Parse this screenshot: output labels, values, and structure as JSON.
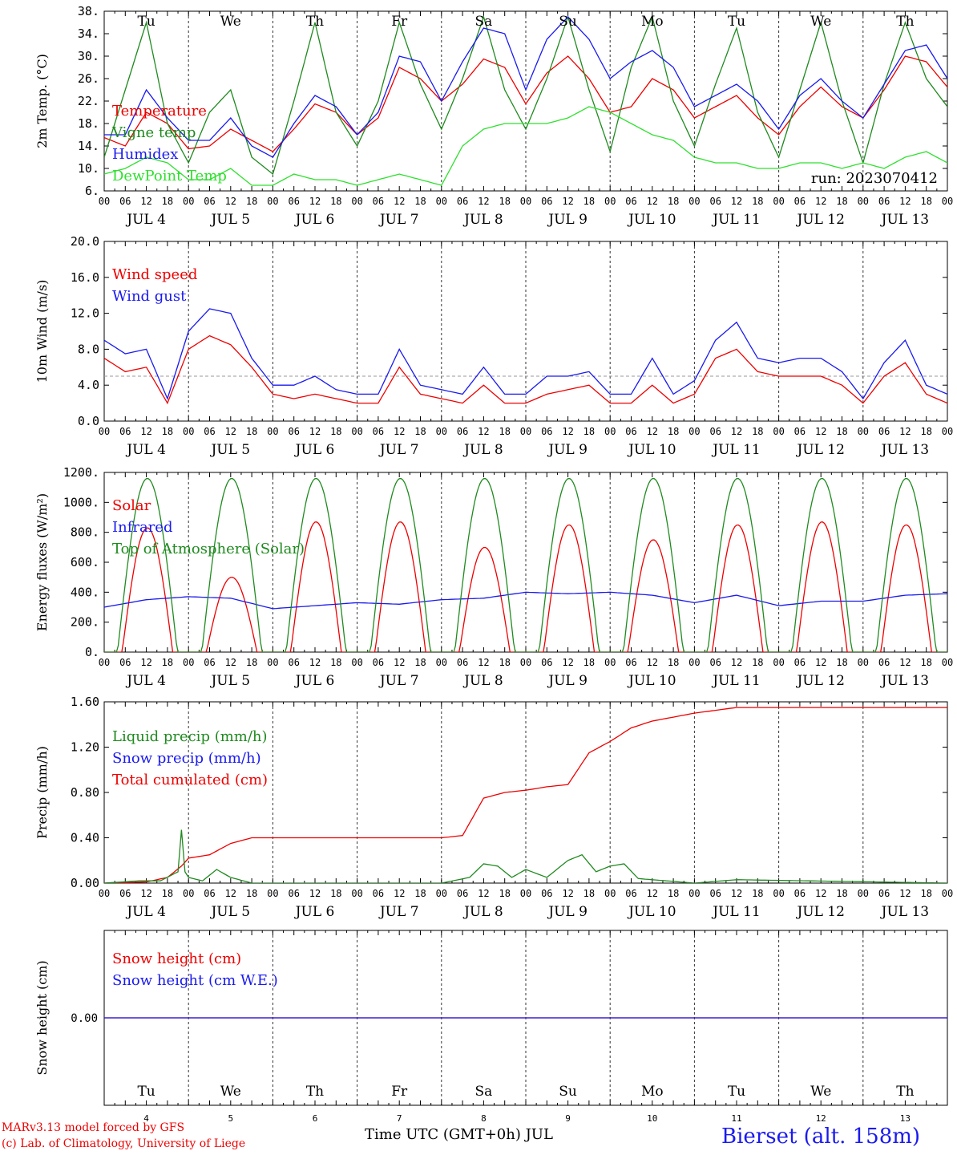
{
  "run_label": "run: 2023070412",
  "station": "Bierset (alt. 158m)",
  "footer": {
    "model": "MARv3.13 model forced by GFS",
    "copyright": "(c) Lab. of Climatology, University of Liege",
    "xaxis_title": "Time UTC (GMT+0h) JUL"
  },
  "colors": {
    "red": "#ee0000",
    "blue": "#1a1aee",
    "green": "#1f8a1f",
    "lightgreen": "#2ee02e",
    "purple": "#8b3a8b",
    "grid": "#666666"
  },
  "days": {
    "weekday": [
      "Tu",
      "We",
      "Th",
      "Fr",
      "Sa",
      "Su",
      "Mo",
      "Tu",
      "We",
      "Th"
    ],
    "weekend_flags": [
      false,
      false,
      false,
      false,
      true,
      true,
      false,
      false,
      false,
      false
    ],
    "dates": [
      "JUL  4",
      "JUL  5",
      "JUL  6",
      "JUL  7",
      "JUL  8",
      "JUL  9",
      "JUL 10",
      "JUL 11",
      "JUL 12",
      "JUL 13"
    ],
    "numbers": [
      "4",
      "5",
      "6",
      "7",
      "8",
      "9",
      "10",
      "11",
      "12",
      "13"
    ],
    "hour_ticks": [
      "00",
      "06",
      "12",
      "18"
    ],
    "final_hour": "00"
  },
  "chart_data": [
    {
      "id": "temp",
      "type": "line",
      "ylabel": "2m Temp. (°C)",
      "ylim": [
        6,
        38
      ],
      "yticks": [
        "6.",
        "10.",
        "14.",
        "18.",
        "22.",
        "26.",
        "30.",
        "34.",
        "38."
      ],
      "xunit": "hours since JUL 4 00 UTC",
      "legend": [
        "Temperature",
        "Vigne temp",
        "Humidex",
        "DewPoint Temp"
      ],
      "series": [
        {
          "name": "Temperature",
          "color": "red",
          "x": [
            0,
            6,
            12,
            18,
            24,
            30,
            36,
            42,
            48,
            54,
            60,
            66,
            72,
            78,
            84,
            90,
            96,
            102,
            108,
            114,
            120,
            126,
            132,
            138,
            144,
            150,
            156,
            162,
            168,
            174,
            180,
            186,
            192,
            198,
            204,
            210,
            216,
            222,
            228,
            234,
            240
          ],
          "values": [
            15.5,
            14,
            20,
            18,
            13.5,
            14,
            17,
            15,
            13,
            17,
            21.5,
            20,
            16,
            19,
            28,
            26,
            22,
            25,
            29.5,
            28,
            21.5,
            27,
            30,
            26,
            20,
            21,
            26,
            24,
            19,
            21,
            23,
            19,
            16,
            21,
            24.5,
            21,
            19,
            24,
            30,
            29,
            24.5
          ]
        },
        {
          "name": "Vigne temp",
          "color": "green",
          "x": [
            0,
            6,
            12,
            18,
            24,
            30,
            36,
            42,
            48,
            54,
            60,
            66,
            72,
            78,
            84,
            90,
            96,
            102,
            108,
            114,
            120,
            126,
            132,
            138,
            144,
            150,
            156,
            162,
            168,
            174,
            180,
            186,
            192,
            198,
            204,
            210,
            216,
            222,
            228,
            234,
            240
          ],
          "values": [
            12,
            24,
            36,
            18,
            11,
            20,
            24,
            12,
            9,
            22,
            36,
            20,
            14,
            22,
            36,
            25,
            17,
            26,
            37,
            24,
            17,
            26,
            37,
            24,
            13,
            28,
            37,
            22,
            14,
            25,
            35,
            20,
            12,
            24,
            36,
            22,
            11,
            25,
            36,
            26,
            21
          ]
        },
        {
          "name": "Humidex",
          "color": "blue",
          "x": [
            0,
            6,
            12,
            18,
            24,
            30,
            36,
            42,
            48,
            54,
            60,
            66,
            72,
            78,
            84,
            90,
            96,
            102,
            108,
            114,
            120,
            126,
            132,
            138,
            144,
            150,
            156,
            162,
            168,
            174,
            180,
            186,
            192,
            198,
            204,
            210,
            216,
            222,
            228,
            234,
            240
          ],
          "values": [
            16,
            16,
            24,
            19,
            15,
            15,
            19,
            14,
            12,
            18,
            23,
            21,
            16,
            20,
            30,
            29,
            22,
            29,
            35,
            34,
            24,
            33,
            37,
            33,
            26,
            29,
            31,
            28,
            21,
            23,
            25,
            22,
            17,
            23,
            26,
            22,
            19,
            25,
            31,
            32,
            26
          ]
        },
        {
          "name": "DewPoint Temp",
          "color": "lightgreen",
          "x": [
            0,
            6,
            12,
            18,
            24,
            30,
            36,
            42,
            48,
            54,
            60,
            66,
            72,
            78,
            84,
            90,
            96,
            102,
            108,
            114,
            120,
            126,
            132,
            138,
            144,
            150,
            156,
            162,
            168,
            174,
            180,
            186,
            192,
            198,
            204,
            210,
            216,
            222,
            228,
            234,
            240
          ],
          "values": [
            9,
            10,
            12,
            11,
            8,
            8,
            10,
            7,
            7,
            9,
            8,
            8,
            7,
            8,
            9,
            8,
            7,
            14,
            17,
            18,
            18,
            18,
            19,
            21,
            20,
            18,
            16,
            15,
            12,
            11,
            11,
            10,
            10,
            11,
            11,
            10,
            11,
            10,
            12,
            13,
            11
          ]
        }
      ]
    },
    {
      "id": "wind",
      "type": "line",
      "ylabel": "10m Wind (m/s)",
      "ylim": [
        0,
        20
      ],
      "yticks": [
        "0.0",
        "4.0",
        "8.0",
        "12.0",
        "16.0",
        "20.0"
      ],
      "reference_line": 5.0,
      "legend": [
        "Wind speed",
        "Wind gust"
      ],
      "series": [
        {
          "name": "Wind speed",
          "color": "red",
          "x": [
            0,
            6,
            12,
            18,
            24,
            30,
            36,
            42,
            48,
            54,
            60,
            66,
            72,
            78,
            84,
            90,
            96,
            102,
            108,
            114,
            120,
            126,
            132,
            138,
            144,
            150,
            156,
            162,
            168,
            174,
            180,
            186,
            192,
            198,
            204,
            210,
            216,
            222,
            228,
            234,
            240
          ],
          "values": [
            7,
            5.5,
            6,
            2,
            8,
            9.5,
            8.5,
            6,
            3,
            2.5,
            3,
            2.5,
            2,
            2,
            6,
            3,
            2.5,
            2,
            4,
            2,
            2,
            3,
            3.5,
            4,
            2,
            2,
            4,
            2,
            3,
            7,
            8,
            5.5,
            5,
            5,
            5,
            4,
            2,
            5,
            6.5,
            3,
            2
          ]
        },
        {
          "name": "Wind gust",
          "color": "blue",
          "x": [
            0,
            6,
            12,
            18,
            24,
            30,
            36,
            42,
            48,
            54,
            60,
            66,
            72,
            78,
            84,
            90,
            96,
            102,
            108,
            114,
            120,
            126,
            132,
            138,
            144,
            150,
            156,
            162,
            168,
            174,
            180,
            186,
            192,
            198,
            204,
            210,
            216,
            222,
            228,
            234,
            240
          ],
          "values": [
            9,
            7.5,
            8,
            2.5,
            10,
            12.5,
            12,
            7,
            4,
            4,
            5,
            3.5,
            3,
            3,
            8,
            4,
            3.5,
            3,
            6,
            3,
            3,
            5,
            5,
            5.5,
            3,
            3,
            7,
            3,
            4.5,
            9,
            11,
            7,
            6.5,
            7,
            7,
            5.5,
            2.5,
            6.5,
            9,
            4,
            3
          ]
        }
      ]
    },
    {
      "id": "flux",
      "type": "line",
      "ylabel": "Energy fluxes (W/m²)",
      "ylim": [
        0,
        1200
      ],
      "yticks": [
        "0.",
        "200.",
        "400.",
        "600.",
        "800.",
        "1000.",
        "1200."
      ],
      "legend": [
        "Solar",
        "Infrared",
        "Top of Atmosphere (Solar)"
      ],
      "series": [
        {
          "name": "Solar",
          "color": "red",
          "peaks": [
            830,
            500,
            870,
            870,
            700,
            850,
            750,
            850,
            870,
            850
          ]
        },
        {
          "name": "Infrared",
          "color": "blue",
          "x": [
            0,
            12,
            24,
            36,
            48,
            60,
            72,
            84,
            96,
            108,
            120,
            132,
            144,
            156,
            168,
            180,
            192,
            204,
            216,
            228,
            240
          ],
          "values": [
            300,
            350,
            370,
            360,
            290,
            310,
            330,
            320,
            350,
            360,
            400,
            390,
            400,
            380,
            330,
            380,
            310,
            340,
            340,
            380,
            390
          ]
        },
        {
          "name": "Top of Atmosphere (Solar)",
          "color": "green",
          "peaks": [
            1160,
            1160,
            1160,
            1160,
            1160,
            1160,
            1160,
            1160,
            1160,
            1160
          ]
        }
      ]
    },
    {
      "id": "precip",
      "type": "line",
      "ylabel": "Precip (mm/h)",
      "ylim": [
        0,
        1.6
      ],
      "yticks": [
        "0.00",
        "0.40",
        "0.80",
        "1.20",
        "1.60"
      ],
      "legend": [
        "Liquid precip (mm/h)",
        "Snow precip (mm/h)",
        "Total cumulated (cm)"
      ],
      "series": [
        {
          "name": "Total cumulated (cm)",
          "color": "red",
          "x": [
            0,
            12,
            18,
            22,
            24,
            30,
            36,
            42,
            60,
            96,
            102,
            108,
            114,
            120,
            126,
            132,
            138,
            144,
            150,
            156,
            168,
            180,
            192,
            240
          ],
          "values": [
            0,
            0.01,
            0.05,
            0.15,
            0.22,
            0.25,
            0.35,
            0.4,
            0.4,
            0.4,
            0.42,
            0.75,
            0.8,
            0.82,
            0.85,
            0.87,
            1.15,
            1.25,
            1.37,
            1.43,
            1.5,
            1.55,
            1.55,
            1.55
          ]
        },
        {
          "name": "Liquid precip (mm/h)",
          "color": "green",
          "x": [
            0,
            10,
            16,
            21,
            22,
            23,
            24,
            28,
            32,
            36,
            42,
            96,
            104,
            108,
            112,
            116,
            120,
            126,
            132,
            136,
            140,
            144,
            148,
            152,
            156,
            168,
            180,
            240
          ],
          "values": [
            0,
            0.02,
            0.02,
            0.1,
            0.47,
            0.1,
            0.05,
            0.02,
            0.12,
            0.05,
            0,
            0,
            0.05,
            0.17,
            0.15,
            0.05,
            0.12,
            0.05,
            0.2,
            0.25,
            0.1,
            0.15,
            0.17,
            0.04,
            0.03,
            0,
            0.03,
            0
          ]
        }
      ]
    },
    {
      "id": "snow",
      "type": "line",
      "ylabel": "Snow height (cm)",
      "ylim": [
        -1,
        1
      ],
      "yticks": [
        "0.00"
      ],
      "legend": [
        "Snow height (cm)",
        "Snow height (cm W.E.)"
      ],
      "series": [
        {
          "name": "Snow height (cm)",
          "color": "red",
          "x": [
            0,
            240
          ],
          "values": [
            0,
            0
          ]
        },
        {
          "name": "Snow height (cm W.E.)",
          "color": "blue",
          "x": [
            0,
            240
          ],
          "values": [
            0,
            0
          ]
        }
      ]
    }
  ]
}
